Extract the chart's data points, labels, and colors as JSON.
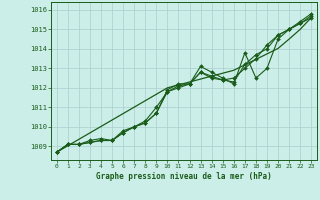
{
  "title": "Graphe pression niveau de la mer (hPa)",
  "bg_color": "#cceee8",
  "grid_color": "#aacccc",
  "line_color": "#1a5c1a",
  "xlim": [
    -0.5,
    23.5
  ],
  "ylim": [
    1008.3,
    1016.4
  ],
  "yticks": [
    1009,
    1010,
    1011,
    1012,
    1013,
    1014,
    1015,
    1016
  ],
  "xticks": [
    0,
    1,
    2,
    3,
    4,
    5,
    6,
    7,
    8,
    9,
    10,
    11,
    12,
    13,
    14,
    15,
    16,
    17,
    18,
    19,
    20,
    21,
    22,
    23
  ],
  "series1": [
    1008.7,
    1009.1,
    1009.1,
    1009.2,
    1009.3,
    1009.3,
    1009.7,
    1010.0,
    1010.2,
    1010.7,
    1011.9,
    1012.2,
    1012.2,
    1013.1,
    1012.8,
    1012.5,
    1012.2,
    1013.8,
    1012.5,
    1013.0,
    1014.5,
    1015.0,
    1015.3,
    1015.7
  ],
  "series2": [
    1008.7,
    1009.1,
    1009.1,
    1009.3,
    1009.4,
    1009.3,
    1009.8,
    1010.0,
    1010.3,
    1011.0,
    1011.8,
    1012.1,
    1012.2,
    1012.8,
    1012.6,
    1012.4,
    1012.5,
    1013.0,
    1013.5,
    1014.2,
    1014.7,
    1015.0,
    1015.4,
    1015.8
  ],
  "series3": [
    1008.7,
    1009.1,
    1009.1,
    1009.2,
    1009.3,
    1009.3,
    1009.7,
    1010.0,
    1010.2,
    1010.7,
    1011.8,
    1012.0,
    1012.2,
    1012.8,
    1012.5,
    1012.4,
    1012.3,
    1013.2,
    1013.7,
    1014.0,
    1014.7,
    1015.0,
    1015.3,
    1015.6
  ],
  "diagonal": [
    1008.7,
    1009.03,
    1009.36,
    1009.69,
    1010.02,
    1010.35,
    1010.68,
    1011.01,
    1011.34,
    1011.67,
    1012.0,
    1012.15,
    1012.3,
    1012.45,
    1012.6,
    1012.75,
    1012.9,
    1013.18,
    1013.46,
    1013.74,
    1014.02,
    1014.5,
    1015.0,
    1015.6
  ]
}
